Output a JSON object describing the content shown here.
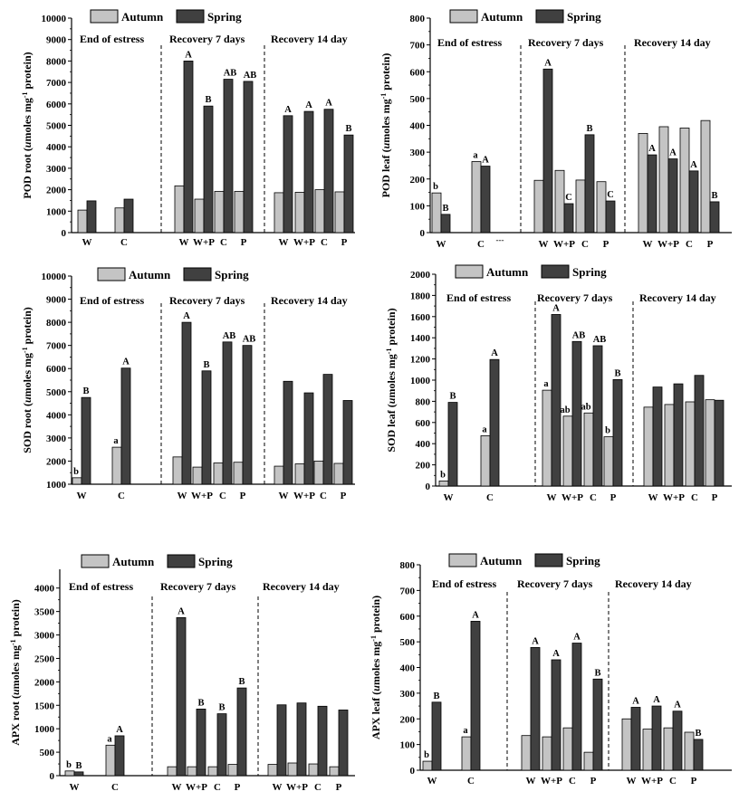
{
  "colors": {
    "autumn": "#c4c4c4",
    "spring": "#404040",
    "stroke": "#000000"
  },
  "chart_data": [
    {
      "type": "bar",
      "id": "pod-root",
      "ylabel_main": "POD root (",
      "ylabel_unit": "u",
      "ylabel_rest": "moles mg",
      "ylabel_sup": "-1",
      "ylabel_end": " protein)",
      "ylim": [
        0,
        10000
      ],
      "yticks": [
        "0",
        "1000",
        "2000",
        "3000",
        "4000",
        "5000",
        "6000",
        "7000",
        "8000",
        "9000",
        "10000"
      ],
      "legend": [
        "Autumn",
        "Spring"
      ],
      "sections": [
        "End of estress",
        "Recovery 7 days",
        "Recovery 14 day"
      ],
      "groups": [
        {
          "label": "W",
          "autumn": 1050,
          "spring": 1480,
          "sig_autumn": "",
          "sig_spring": ""
        },
        {
          "label": "C",
          "autumn": 1150,
          "spring": 1560,
          "sig_autumn": "",
          "sig_spring": ""
        },
        {
          "label": "W",
          "autumn": 2180,
          "spring": 8000,
          "sig_autumn": "",
          "sig_spring": "A"
        },
        {
          "label": "W+P",
          "autumn": 1560,
          "spring": 5900,
          "sig_autumn": "",
          "sig_spring": "B"
        },
        {
          "label": "C",
          "autumn": 1920,
          "spring": 7150,
          "sig_autumn": "",
          "sig_spring": "AB"
        },
        {
          "label": "P",
          "autumn": 1920,
          "spring": 7050,
          "sig_autumn": "",
          "sig_spring": "AB"
        },
        {
          "label": "W",
          "autumn": 1860,
          "spring": 5450,
          "sig_autumn": "",
          "sig_spring": "A"
        },
        {
          "label": "W+P",
          "autumn": 1880,
          "spring": 5650,
          "sig_autumn": "",
          "sig_spring": "A"
        },
        {
          "label": "C",
          "autumn": 2000,
          "spring": 5750,
          "sig_autumn": "",
          "sig_spring": "A"
        },
        {
          "label": "P",
          "autumn": 1900,
          "spring": 4550,
          "sig_autumn": "",
          "sig_spring": "B"
        }
      ]
    },
    {
      "type": "bar",
      "id": "pod-leaf",
      "ylabel_main": "POD leaf (",
      "ylabel_unit": "u",
      "ylabel_rest": "moles mg",
      "ylabel_sup": "-1",
      "ylabel_end": " protein)",
      "ylim": [
        0,
        800
      ],
      "yticks": [
        "0",
        "100",
        "200",
        "300",
        "400",
        "500",
        "600",
        "700",
        "800"
      ],
      "legend": [
        "Autumn",
        "Spring"
      ],
      "sections": [
        "End of estress",
        "Recovery 7 days",
        "Recovery 14 day"
      ],
      "groups": [
        {
          "label": "W",
          "autumn": 148,
          "spring": 68,
          "sig_autumn": "b",
          "sig_spring": "B"
        },
        {
          "label": "C",
          "autumn": 265,
          "spring": 248,
          "sig_autumn": "a",
          "sig_spring": "A"
        },
        {
          "label": "W",
          "autumn": 195,
          "spring": 610,
          "sig_autumn": "",
          "sig_spring": "A"
        },
        {
          "label": "W+P",
          "autumn": 232,
          "spring": 108,
          "sig_autumn": "",
          "sig_spring": "C"
        },
        {
          "label": "C",
          "autumn": 196,
          "spring": 365,
          "sig_autumn": "",
          "sig_spring": "B"
        },
        {
          "label": "P",
          "autumn": 190,
          "spring": 118,
          "sig_autumn": "",
          "sig_spring": "C"
        },
        {
          "label": "W",
          "autumn": 370,
          "spring": 290,
          "sig_autumn": "",
          "sig_spring": "A"
        },
        {
          "label": "W+P",
          "autumn": 395,
          "spring": 275,
          "sig_autumn": "",
          "sig_spring": "A"
        },
        {
          "label": "C",
          "autumn": 390,
          "spring": 230,
          "sig_autumn": "",
          "sig_spring": "A"
        },
        {
          "label": "P",
          "autumn": 418,
          "spring": 115,
          "sig_autumn": "",
          "sig_spring": "B"
        }
      ],
      "note": "---"
    },
    {
      "type": "bar",
      "id": "sod-root",
      "ylabel_main": "SOD root (",
      "ylabel_unit": "u",
      "ylabel_rest": "moles mg",
      "ylabel_sup": "-1",
      "ylabel_end": " protein)",
      "ylim": [
        1000,
        10000
      ],
      "yticks": [
        "1000",
        "2000",
        "3000",
        "4000",
        "5000",
        "6000",
        "7000",
        "8000",
        "9000",
        "10000"
      ],
      "legend": [
        "Autumn",
        "Spring"
      ],
      "sections": [
        "End of estress",
        "Recovery 7 days",
        "Recovery 14 day"
      ],
      "groups": [
        {
          "label": "W",
          "autumn": 1280,
          "spring": 4750,
          "sig_autumn": "b",
          "sig_spring": "B"
        },
        {
          "label": "C",
          "autumn": 2600,
          "spring": 6020,
          "sig_autumn": "a",
          "sig_spring": "A"
        },
        {
          "label": "W",
          "autumn": 2180,
          "spring": 8000,
          "sig_autumn": "",
          "sig_spring": "A"
        },
        {
          "label": "W+P",
          "autumn": 1740,
          "spring": 5900,
          "sig_autumn": "",
          "sig_spring": "B"
        },
        {
          "label": "C",
          "autumn": 1920,
          "spring": 7150,
          "sig_autumn": "",
          "sig_spring": "AB"
        },
        {
          "label": "P",
          "autumn": 1950,
          "spring": 7000,
          "sig_autumn": "",
          "sig_spring": "AB"
        },
        {
          "label": "W",
          "autumn": 1780,
          "spring": 5450,
          "sig_autumn": "",
          "sig_spring": ""
        },
        {
          "label": "W+P",
          "autumn": 1880,
          "spring": 4950,
          "sig_autumn": "",
          "sig_spring": ""
        },
        {
          "label": "C",
          "autumn": 2000,
          "spring": 5750,
          "sig_autumn": "",
          "sig_spring": ""
        },
        {
          "label": "P",
          "autumn": 1900,
          "spring": 4620,
          "sig_autumn": "",
          "sig_spring": ""
        }
      ]
    },
    {
      "type": "bar",
      "id": "sod-leaf",
      "ylabel_main": "SOD leaf (",
      "ylabel_unit": "u",
      "ylabel_rest": "moles mg",
      "ylabel_sup": "-1",
      "ylabel_end": " protein)",
      "ylim": [
        0,
        2000
      ],
      "yticks": [
        "0",
        "200",
        "400",
        "600",
        "800",
        "1000",
        "1200",
        "1400",
        "1600",
        "1800",
        "2000"
      ],
      "legend": [
        "Autumn",
        "Spring"
      ],
      "sections": [
        "End of estress",
        "Recovery 7 days",
        "Recovery 14 day"
      ],
      "groups": [
        {
          "label": "W",
          "autumn": 48,
          "spring": 790,
          "sig_autumn": "b",
          "sig_spring": "B"
        },
        {
          "label": "C",
          "autumn": 475,
          "spring": 1195,
          "sig_autumn": "a",
          "sig_spring": "A"
        },
        {
          "label": "W",
          "autumn": 905,
          "spring": 1620,
          "sig_autumn": "a",
          "sig_spring": "A"
        },
        {
          "label": "W+P",
          "autumn": 660,
          "spring": 1365,
          "sig_autumn": "ab",
          "sig_spring": "AB"
        },
        {
          "label": "C",
          "autumn": 690,
          "spring": 1325,
          "sig_autumn": "ab",
          "sig_spring": "AB"
        },
        {
          "label": "P",
          "autumn": 465,
          "spring": 1005,
          "sig_autumn": "b",
          "sig_spring": "B"
        },
        {
          "label": "W",
          "autumn": 745,
          "spring": 935,
          "sig_autumn": "",
          "sig_spring": ""
        },
        {
          "label": "W+P",
          "autumn": 770,
          "spring": 965,
          "sig_autumn": "",
          "sig_spring": ""
        },
        {
          "label": "C",
          "autumn": 795,
          "spring": 1045,
          "sig_autumn": "",
          "sig_spring": ""
        },
        {
          "label": "P",
          "autumn": 815,
          "spring": 810,
          "sig_autumn": "",
          "sig_spring": ""
        }
      ]
    },
    {
      "type": "bar",
      "id": "apx-root",
      "ylabel_main": "APX root (",
      "ylabel_unit": "u",
      "ylabel_rest": "moles mg",
      "ylabel_sup": "-1",
      "ylabel_end": " protein)",
      "ylim": [
        0,
        4400
      ],
      "yticks": [
        "0",
        "500",
        "1000",
        "1500",
        "2000",
        "2500",
        "3000",
        "3500",
        "4000"
      ],
      "legend": [
        "Autumn",
        "Spring"
      ],
      "sections": [
        "End of estress",
        "Recovery 7 days",
        "Recovery 14 day"
      ],
      "groups": [
        {
          "label": "W",
          "autumn": 100,
          "spring": 80,
          "sig_autumn": "b",
          "sig_spring": "B"
        },
        {
          "label": "C",
          "autumn": 650,
          "spring": 850,
          "sig_autumn": "a",
          "sig_spring": "A"
        },
        {
          "label": "W",
          "autumn": 190,
          "spring": 3370,
          "sig_autumn": "",
          "sig_spring": "A"
        },
        {
          "label": "W+P",
          "autumn": 190,
          "spring": 1420,
          "sig_autumn": "",
          "sig_spring": "B"
        },
        {
          "label": "C",
          "autumn": 190,
          "spring": 1320,
          "sig_autumn": "",
          "sig_spring": "B"
        },
        {
          "label": "P",
          "autumn": 240,
          "spring": 1870,
          "sig_autumn": "",
          "sig_spring": "B"
        },
        {
          "label": "W",
          "autumn": 240,
          "spring": 1510,
          "sig_autumn": "",
          "sig_spring": ""
        },
        {
          "label": "W+P",
          "autumn": 270,
          "spring": 1550,
          "sig_autumn": "",
          "sig_spring": ""
        },
        {
          "label": "C",
          "autumn": 250,
          "spring": 1480,
          "sig_autumn": "",
          "sig_spring": ""
        },
        {
          "label": "P",
          "autumn": 190,
          "spring": 1400,
          "sig_autumn": "",
          "sig_spring": ""
        }
      ]
    },
    {
      "type": "bar",
      "id": "apx-leaf",
      "ylabel_main": "APX leaf (",
      "ylabel_unit": "u",
      "ylabel_rest": "moles mg",
      "ylabel_sup": "-1",
      "ylabel_end": " protein)",
      "ylim": [
        0,
        800
      ],
      "yticks": [
        "0",
        "100",
        "200",
        "300",
        "400",
        "500",
        "600",
        "700",
        "800"
      ],
      "legend": [
        "Autumn",
        "Spring"
      ],
      "sections": [
        "End of estress",
        "Recovery 7 days",
        "Recovery 14 day"
      ],
      "groups": [
        {
          "label": "W",
          "autumn": 35,
          "spring": 265,
          "sig_autumn": "b",
          "sig_spring": "B"
        },
        {
          "label": "C",
          "autumn": 130,
          "spring": 580,
          "sig_autumn": "a",
          "sig_spring": "A"
        },
        {
          "label": "W",
          "autumn": 135,
          "spring": 478,
          "sig_autumn": "",
          "sig_spring": "A"
        },
        {
          "label": "W+P",
          "autumn": 130,
          "spring": 430,
          "sig_autumn": "",
          "sig_spring": "A"
        },
        {
          "label": "C",
          "autumn": 165,
          "spring": 495,
          "sig_autumn": "",
          "sig_spring": "A"
        },
        {
          "label": "P",
          "autumn": 70,
          "spring": 355,
          "sig_autumn": "",
          "sig_spring": "B"
        },
        {
          "label": "W",
          "autumn": 200,
          "spring": 245,
          "sig_autumn": "",
          "sig_spring": "A"
        },
        {
          "label": "W+P",
          "autumn": 160,
          "spring": 250,
          "sig_autumn": "",
          "sig_spring": "A"
        },
        {
          "label": "C",
          "autumn": 165,
          "spring": 230,
          "sig_autumn": "",
          "sig_spring": "A"
        },
        {
          "label": "P",
          "autumn": 148,
          "spring": 120,
          "sig_autumn": "",
          "sig_spring": "B"
        }
      ]
    }
  ]
}
